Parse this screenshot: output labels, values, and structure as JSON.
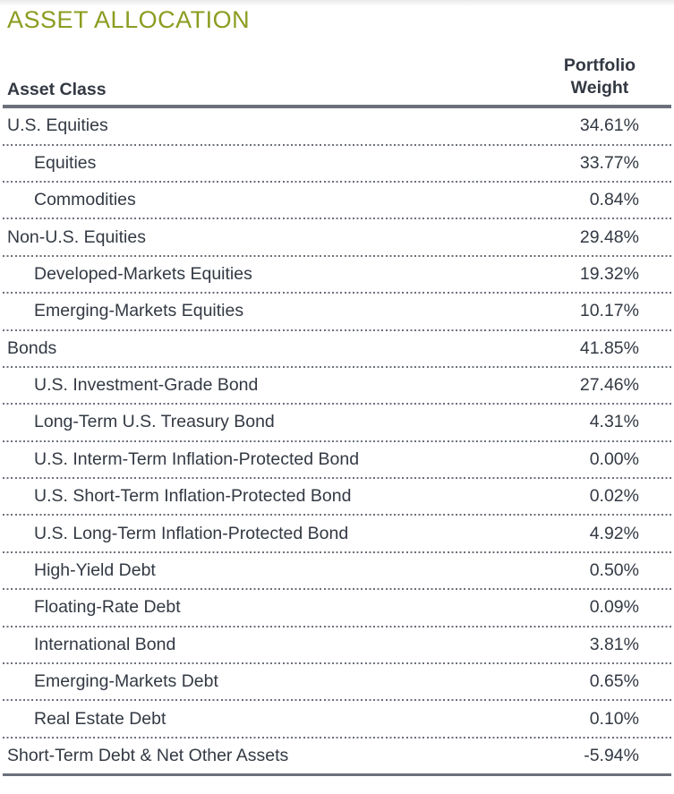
{
  "title": "ASSET ALLOCATION",
  "colors": {
    "accent_green": "#8c9c1f",
    "text": "#333943",
    "rule_gray": "#6b707a"
  },
  "table": {
    "col_asset_class": "Asset Class",
    "col_weight_line1": "Portfolio",
    "col_weight_line2": "Weight",
    "rows": [
      {
        "label": "U.S. Equities",
        "weight": "34.61%",
        "indent": 0
      },
      {
        "label": "Equities",
        "weight": "33.77%",
        "indent": 1
      },
      {
        "label": "Commodities",
        "weight": "0.84%",
        "indent": 1
      },
      {
        "label": "Non-U.S. Equities",
        "weight": "29.48%",
        "indent": 0
      },
      {
        "label": "Developed-Markets Equities",
        "weight": "19.32%",
        "indent": 1
      },
      {
        "label": "Emerging-Markets Equities",
        "weight": "10.17%",
        "indent": 1
      },
      {
        "label": "Bonds",
        "weight": "41.85%",
        "indent": 0
      },
      {
        "label": "U.S. Investment-Grade Bond",
        "weight": "27.46%",
        "indent": 1
      },
      {
        "label": "Long-Term U.S. Treasury Bond",
        "weight": "4.31%",
        "indent": 1
      },
      {
        "label": "U.S. Interm-Term Inflation-Protected Bond",
        "weight": "0.00%",
        "indent": 1
      },
      {
        "label": "U.S. Short-Term Inflation-Protected Bond",
        "weight": "0.02%",
        "indent": 1
      },
      {
        "label": "U.S. Long-Term Inflation-Protected Bond",
        "weight": "4.92%",
        "indent": 1
      },
      {
        "label": "High-Yield Debt",
        "weight": "0.50%",
        "indent": 1
      },
      {
        "label": "Floating-Rate Debt",
        "weight": "0.09%",
        "indent": 1
      },
      {
        "label": "International Bond",
        "weight": "3.81%",
        "indent": 1
      },
      {
        "label": "Emerging-Markets Debt",
        "weight": "0.65%",
        "indent": 1
      },
      {
        "label": "Real Estate Debt",
        "weight": "0.10%",
        "indent": 1
      },
      {
        "label": "Short-Term Debt & Net Other Assets",
        "weight": "-5.94%",
        "indent": 0
      }
    ]
  }
}
